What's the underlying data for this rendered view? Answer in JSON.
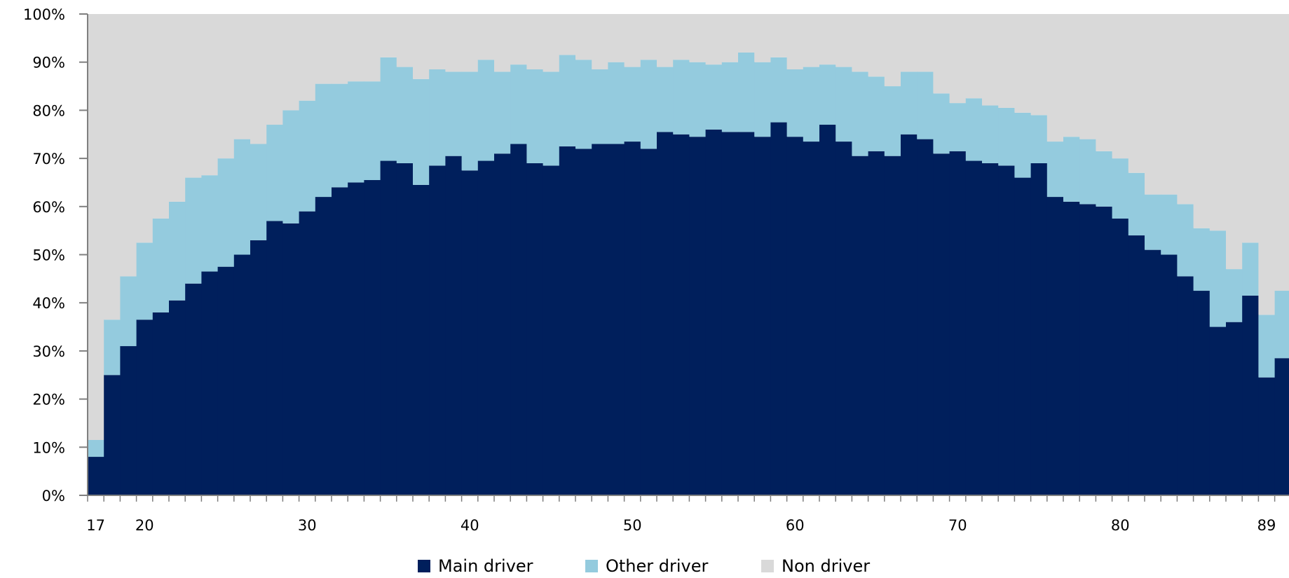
{
  "chart_data": {
    "type": "bar",
    "stacked": true,
    "stack_percent": true,
    "bar_gap": 0,
    "x_labels": [
      "17",
      "20",
      "30",
      "40",
      "50",
      "60",
      "70",
      "80",
      "89"
    ],
    "ylim": [
      0,
      100
    ],
    "yticks": [
      "0%",
      "10%",
      "20%",
      "30%",
      "40%",
      "50%",
      "60%",
      "70%",
      "80%",
      "90%",
      "100%"
    ],
    "legend": {
      "position": "bottom"
    },
    "grid": false,
    "categories": [
      "17",
      "18",
      "19",
      "20",
      "21",
      "22",
      "23",
      "24",
      "25",
      "26",
      "27",
      "28",
      "29",
      "30",
      "31",
      "32",
      "33",
      "34",
      "35",
      "36",
      "37",
      "38",
      "39",
      "40",
      "41",
      "42",
      "43",
      "44",
      "45",
      "46",
      "47",
      "48",
      "49",
      "50",
      "51",
      "52",
      "53",
      "54",
      "55",
      "56",
      "57",
      "58",
      "59",
      "60",
      "61",
      "62",
      "63",
      "64",
      "65",
      "66",
      "67",
      "68",
      "69",
      "70",
      "71",
      "72",
      "73",
      "74",
      "75",
      "76",
      "77",
      "78",
      "79",
      "80",
      "81",
      "82",
      "83",
      "84",
      "85",
      "86",
      "87",
      "88",
      "89",
      "90",
      "91"
    ],
    "series": [
      {
        "name": "Main driver",
        "color": "#001f5c",
        "values": [
          8,
          25,
          31,
          36.5,
          38,
          40.5,
          44,
          46.5,
          47.5,
          50,
          53,
          57,
          56.5,
          59,
          62,
          64,
          65,
          65.5,
          69.5,
          69,
          64.5,
          68.5,
          70.5,
          67.5,
          69.5,
          71,
          73,
          69,
          68.5,
          72.5,
          72,
          73,
          73,
          73.5,
          72,
          75.5,
          75,
          74.5,
          76,
          75.5,
          75.5,
          74.5,
          77.5,
          74.5,
          73.5,
          77,
          73.5,
          70.5,
          71.5,
          70.5,
          75,
          74,
          71,
          71.5,
          69.5,
          69,
          68.5,
          66,
          69,
          62,
          61,
          60.5,
          60,
          57.5,
          54,
          51,
          50,
          45.5,
          42.5,
          35,
          36,
          41.5,
          24.5,
          28.5,
          0
        ]
      },
      {
        "name": "Other driver",
        "color": "#94cbde",
        "values": [
          3.5,
          11.5,
          14.5,
          16,
          19.5,
          20.5,
          22,
          20,
          22.5,
          24,
          20,
          20,
          23.5,
          23,
          23.5,
          21.5,
          21,
          20.5,
          21.5,
          20,
          22,
          20,
          17.5,
          20.5,
          21,
          17,
          16.5,
          19.5,
          19.5,
          19,
          18.5,
          15.5,
          17,
          15.5,
          18.5,
          13.5,
          15.5,
          15.5,
          13.5,
          14.5,
          16.5,
          15.5,
          13.5,
          14,
          15.5,
          12.5,
          15.5,
          17.5,
          15.5,
          14.5,
          13,
          14,
          12.5,
          10,
          13,
          12,
          12,
          13.5,
          10,
          11.5,
          13.5,
          13.5,
          11.5,
          12.5,
          13,
          11.5,
          12.5,
          15,
          13,
          20,
          11,
          11,
          13,
          14,
          0
        ]
      },
      {
        "name": "Non driver",
        "color": "#d9d9d9",
        "values": [
          88.5,
          63.5,
          54.5,
          47.5,
          42.5,
          39,
          34,
          33.5,
          30,
          26,
          27,
          23,
          20,
          18,
          14.5,
          14.5,
          14,
          14,
          9,
          11,
          13.5,
          11.5,
          12,
          12,
          9.5,
          12,
          10.5,
          11.5,
          12,
          8.5,
          9.5,
          11.5,
          10,
          11,
          9.5,
          11,
          9.5,
          10,
          10.5,
          10,
          8,
          10,
          9,
          11.5,
          11,
          10.5,
          11,
          12,
          13,
          15,
          12,
          12,
          16.5,
          18.5,
          17.5,
          19,
          19.5,
          20.5,
          21,
          26.5,
          25.5,
          26,
          28.5,
          30,
          33,
          37.5,
          37.5,
          39.5,
          44.5,
          45,
          53,
          47.5,
          62.5,
          57.5,
          100
        ]
      }
    ]
  }
}
